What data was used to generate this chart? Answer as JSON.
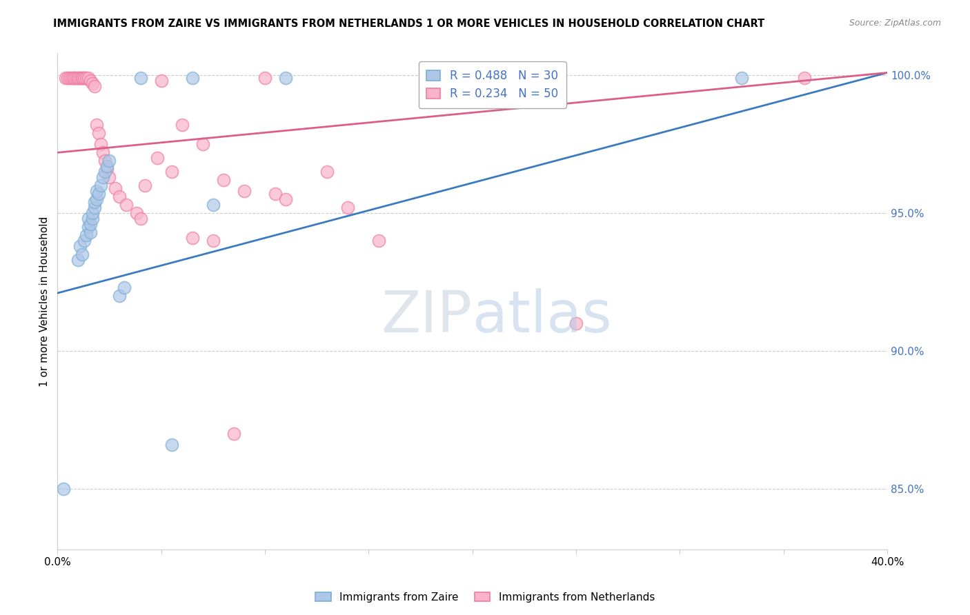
{
  "title": "IMMIGRANTS FROM ZAIRE VS IMMIGRANTS FROM NETHERLANDS 1 OR MORE VEHICLES IN HOUSEHOLD CORRELATION CHART",
  "source": "Source: ZipAtlas.com",
  "ylabel": "1 or more Vehicles in Household",
  "xlim": [
    0.0,
    0.4
  ],
  "ylim": [
    0.828,
    1.008
  ],
  "yticks": [
    0.85,
    0.9,
    0.95,
    1.0
  ],
  "ytick_labels": [
    "85.0%",
    "90.0%",
    "95.0%",
    "100.0%"
  ],
  "xticks": [
    0.0,
    0.05,
    0.1,
    0.15,
    0.2,
    0.25,
    0.3,
    0.35,
    0.4
  ],
  "xtick_labels": [
    "0.0%",
    "",
    "",
    "",
    "",
    "",
    "",
    "",
    "40.0%"
  ],
  "legend_blue_label": "R = 0.488   N = 30",
  "legend_pink_label": "R = 0.234   N = 50",
  "blue_fill_color": "#aec6e8",
  "blue_edge_color": "#7aafd4",
  "pink_fill_color": "#f9b4cb",
  "pink_edge_color": "#f07aa0",
  "blue_line_color": "#3a7abf",
  "pink_line_color": "#d95f8a",
  "blue_line": {
    "x0": 0.0,
    "y0": 0.921,
    "x1": 0.4,
    "y1": 1.001
  },
  "pink_line": {
    "x0": 0.0,
    "y0": 0.972,
    "x1": 0.4,
    "y1": 1.001
  },
  "blue_dots": [
    [
      0.003,
      0.85
    ],
    [
      0.01,
      0.933
    ],
    [
      0.011,
      0.938
    ],
    [
      0.012,
      0.935
    ],
    [
      0.013,
      0.94
    ],
    [
      0.014,
      0.942
    ],
    [
      0.015,
      0.945
    ],
    [
      0.015,
      0.948
    ],
    [
      0.016,
      0.943
    ],
    [
      0.016,
      0.946
    ],
    [
      0.017,
      0.948
    ],
    [
      0.017,
      0.95
    ],
    [
      0.018,
      0.952
    ],
    [
      0.018,
      0.954
    ],
    [
      0.019,
      0.955
    ],
    [
      0.019,
      0.958
    ],
    [
      0.02,
      0.957
    ],
    [
      0.021,
      0.96
    ],
    [
      0.022,
      0.963
    ],
    [
      0.023,
      0.965
    ],
    [
      0.024,
      0.967
    ],
    [
      0.025,
      0.969
    ],
    [
      0.03,
      0.92
    ],
    [
      0.032,
      0.923
    ],
    [
      0.04,
      0.999
    ],
    [
      0.055,
      0.866
    ],
    [
      0.065,
      0.999
    ],
    [
      0.075,
      0.953
    ],
    [
      0.11,
      0.999
    ],
    [
      0.33,
      0.999
    ]
  ],
  "pink_dots": [
    [
      0.004,
      0.999
    ],
    [
      0.005,
      0.999
    ],
    [
      0.006,
      0.999
    ],
    [
      0.007,
      0.999
    ],
    [
      0.008,
      0.999
    ],
    [
      0.008,
      0.999
    ],
    [
      0.009,
      0.999
    ],
    [
      0.01,
      0.999
    ],
    [
      0.01,
      0.999
    ],
    [
      0.011,
      0.999
    ],
    [
      0.012,
      0.999
    ],
    [
      0.012,
      0.999
    ],
    [
      0.013,
      0.999
    ],
    [
      0.013,
      0.999
    ],
    [
      0.014,
      0.999
    ],
    [
      0.015,
      0.999
    ],
    [
      0.016,
      0.998
    ],
    [
      0.017,
      0.997
    ],
    [
      0.018,
      0.996
    ],
    [
      0.019,
      0.982
    ],
    [
      0.02,
      0.979
    ],
    [
      0.021,
      0.975
    ],
    [
      0.022,
      0.972
    ],
    [
      0.023,
      0.969
    ],
    [
      0.024,
      0.966
    ],
    [
      0.025,
      0.963
    ],
    [
      0.028,
      0.959
    ],
    [
      0.03,
      0.956
    ],
    [
      0.033,
      0.953
    ],
    [
      0.038,
      0.95
    ],
    [
      0.04,
      0.948
    ],
    [
      0.042,
      0.96
    ],
    [
      0.048,
      0.97
    ],
    [
      0.05,
      0.998
    ],
    [
      0.055,
      0.965
    ],
    [
      0.06,
      0.982
    ],
    [
      0.065,
      0.941
    ],
    [
      0.07,
      0.975
    ],
    [
      0.075,
      0.94
    ],
    [
      0.08,
      0.962
    ],
    [
      0.085,
      0.87
    ],
    [
      0.09,
      0.958
    ],
    [
      0.1,
      0.999
    ],
    [
      0.105,
      0.957
    ],
    [
      0.11,
      0.955
    ],
    [
      0.13,
      0.965
    ],
    [
      0.14,
      0.952
    ],
    [
      0.155,
      0.94
    ],
    [
      0.25,
      0.91
    ],
    [
      0.36,
      0.999
    ]
  ]
}
